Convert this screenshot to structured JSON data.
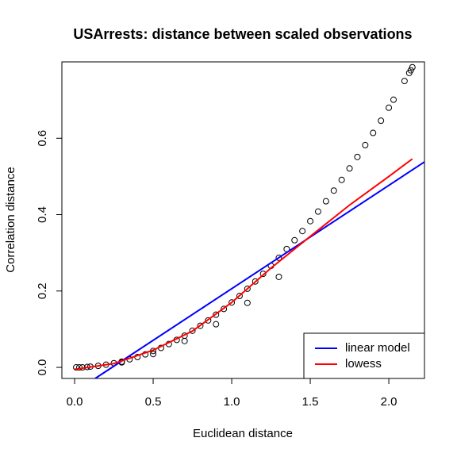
{
  "chart_data": {
    "type": "scatter",
    "title": "USArrests: distance between scaled observations",
    "x_label": "Euclidean distance",
    "y_label": "Correlation distance",
    "xlim": [
      -0.081,
      2.227
    ],
    "ylim": [
      -0.029,
      0.8
    ],
    "xticks": [
      {
        "value": 0,
        "label": "0.0"
      },
      0.5,
      {
        "value": 1,
        "label": "1.0"
      },
      1.5,
      {
        "value": 2,
        "label": "2.0"
      }
    ],
    "yticks": [
      {
        "value": 0,
        "label": "0.0"
      },
      0.2,
      0.4,
      0.6
    ],
    "points": {
      "color": "#000000",
      "x": [
        0.01,
        0.03,
        0.05,
        0.08,
        0.1,
        0.15,
        0.2,
        0.25,
        0.3,
        0.35,
        0.4,
        0.45,
        0.5,
        0.55,
        0.6,
        0.65,
        0.7,
        0.75,
        0.8,
        0.85,
        0.9,
        0.95,
        1.0,
        1.05,
        1.1,
        1.15,
        1.2,
        1.25,
        1.3,
        1.35,
        1.4,
        1.45,
        1.5,
        1.55,
        1.6,
        1.65,
        1.7,
        1.75,
        1.8,
        1.85,
        1.9,
        1.95,
        2.0,
        2.03,
        2.1,
        2.13,
        2.14,
        2.15,
        0.3,
        0.5,
        0.7,
        0.9,
        1.1,
        1.3
      ],
      "values": [
        0.0,
        0.0,
        0.0,
        0.001,
        0.002,
        0.004,
        0.007,
        0.011,
        0.015,
        0.021,
        0.027,
        0.034,
        0.043,
        0.051,
        0.061,
        0.072,
        0.083,
        0.096,
        0.109,
        0.123,
        0.138,
        0.153,
        0.17,
        0.187,
        0.206,
        0.225,
        0.245,
        0.266,
        0.287,
        0.31,
        0.333,
        0.357,
        0.383,
        0.408,
        0.435,
        0.463,
        0.491,
        0.521,
        0.551,
        0.582,
        0.614,
        0.646,
        0.68,
        0.701,
        0.75,
        0.771,
        0.778,
        0.786,
        0.013,
        0.035,
        0.069,
        0.113,
        0.169,
        0.237
      ]
    },
    "lines": [
      {
        "name": "linear model",
        "color": "#0000ff",
        "x": [
          0.131,
          2.227
        ],
        "values": [
          -0.029,
          0.538
        ]
      },
      {
        "name": "lowess",
        "color": "#ff0000",
        "x": [
          0,
          0.25,
          0.5,
          0.75,
          1.0,
          1.25,
          1.5,
          1.75,
          2.0,
          2.15
        ],
        "values": [
          -0.005,
          0.01,
          0.045,
          0.095,
          0.17,
          0.26,
          0.343,
          0.425,
          0.5,
          0.546
        ]
      }
    ],
    "legend": "bottom-right"
  }
}
